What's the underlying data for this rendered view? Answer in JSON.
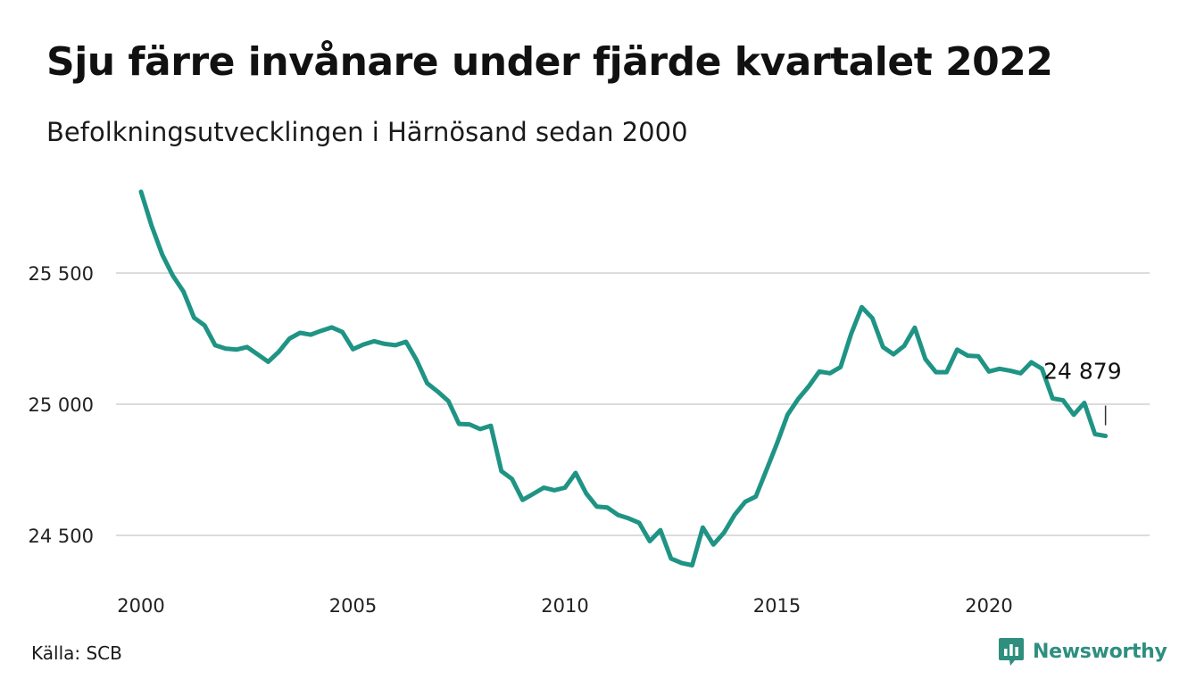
{
  "header": {
    "title": "Sju färre invånare under fjärde kvartalet 2022",
    "subtitle": "Befolkningsutvecklingen i Härnösand sedan 2000"
  },
  "footer": {
    "source": "Källa: SCB",
    "brand": "Newsworthy",
    "brand_icon": "newsworthy-logo-icon"
  },
  "colors": {
    "line": "#1f9484",
    "grid": "#dcdcdc",
    "brand": "#2e8f7f"
  },
  "chart_data": {
    "type": "line",
    "title": "Sju färre invånare under fjärde kvartalet 2022",
    "subtitle": "Befolkningsutvecklingen i Härnösand sedan 2000",
    "xlabel": "",
    "ylabel": "",
    "xlim": [
      2000,
      2023
    ],
    "ylim": [
      24350,
      25820
    ],
    "x_ticks": [
      2000,
      2005,
      2010,
      2015,
      2020
    ],
    "y_ticks": [
      24500,
      25000,
      25500
    ],
    "y_tick_labels": [
      "24 500",
      "25 000",
      "25 500"
    ],
    "grid": "horizontal",
    "legend": "none",
    "annotation": {
      "x": 2022.75,
      "y": 24879,
      "label": "24 879"
    },
    "series": [
      {
        "x": [
          2000.0,
          2000.25,
          2000.5,
          2000.75,
          2001.0,
          2001.25,
          2001.5,
          2001.75,
          2002.0,
          2002.25,
          2002.5,
          2002.75,
          2003.0,
          2003.25,
          2003.5,
          2003.75,
          2004.0,
          2004.25,
          2004.5,
          2004.75,
          2005.0,
          2005.25,
          2005.5,
          2005.75,
          2006.0,
          2006.25,
          2006.5,
          2006.75,
          2007.0,
          2007.25,
          2007.5,
          2007.75,
          2008.0,
          2008.25,
          2008.5,
          2008.75,
          2009.0,
          2009.25,
          2009.5,
          2009.75,
          2010.0,
          2010.25,
          2010.5,
          2010.75,
          2011.0,
          2011.25,
          2011.5,
          2011.75,
          2012.0,
          2012.25,
          2012.5,
          2012.75,
          2013.0,
          2013.25,
          2013.5,
          2013.75,
          2014.0,
          2014.25,
          2014.5,
          2014.75,
          2015.0,
          2015.25,
          2015.5,
          2015.75,
          2016.0,
          2016.25,
          2016.5,
          2016.75,
          2017.0,
          2017.25,
          2017.5,
          2017.75,
          2018.0,
          2018.25,
          2018.5,
          2018.75,
          2019.0,
          2019.25,
          2019.5,
          2019.75,
          2020.0,
          2020.25,
          2020.5,
          2020.75,
          2021.0,
          2021.25,
          2021.5,
          2021.75,
          2022.0,
          2022.25,
          2022.5,
          2022.75
        ],
        "values": [
          25810,
          25680,
          25570,
          25490,
          25430,
          25330,
          25300,
          25225,
          25212,
          25208,
          25218,
          25190,
          25162,
          25200,
          25250,
          25272,
          25265,
          25280,
          25293,
          25275,
          25210,
          25228,
          25240,
          25230,
          25225,
          25238,
          25168,
          25080,
          25048,
          25012,
          24925,
          24923,
          24905,
          24918,
          24745,
          24715,
          24635,
          24658,
          24682,
          24672,
          24682,
          24738,
          24660,
          24610,
          24606,
          24578,
          24565,
          24548,
          24478,
          24520,
          24412,
          24395,
          24386,
          24530,
          24465,
          24510,
          24578,
          24628,
          24648,
          24748,
          24850,
          24960,
          25020,
          25068,
          25125,
          25118,
          25142,
          25268,
          25370,
          25328,
          25218,
          25190,
          25222,
          25292,
          25172,
          25122,
          25122,
          25208,
          25185,
          25183,
          25125,
          25135,
          25128,
          25118,
          25160,
          25135,
          25022,
          25015,
          24960,
          25005,
          24886,
          24879
        ]
      }
    ]
  }
}
